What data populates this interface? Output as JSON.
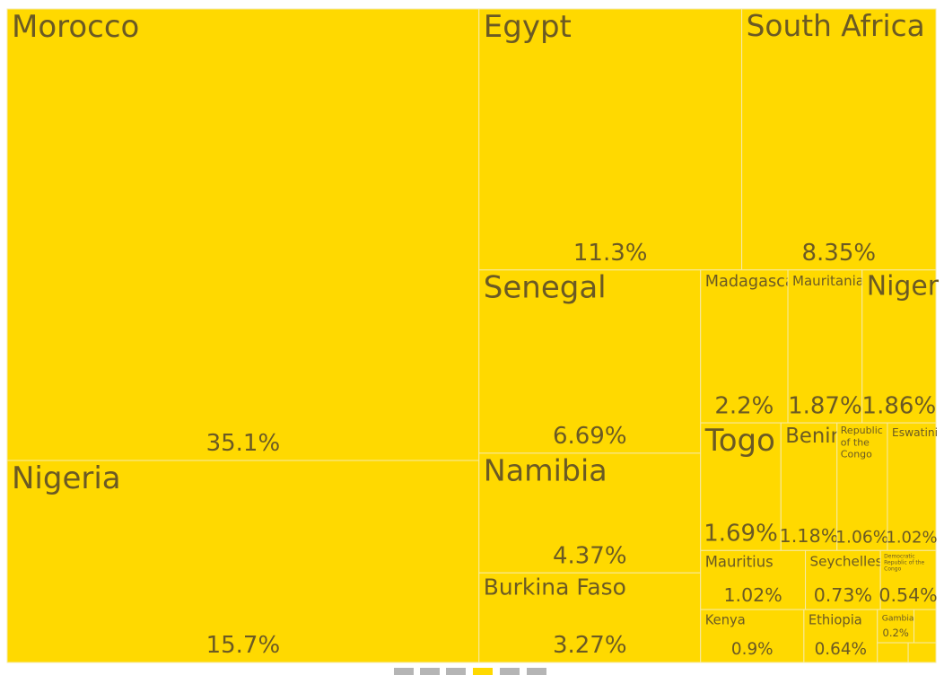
{
  "chart_data": {
    "type": "treemap",
    "categories": [
      "Morocco",
      "Nigeria",
      "Egypt",
      "South Africa",
      "Senegal",
      "Namibia",
      "Burkina Faso",
      "Madagascar",
      "Mauritania",
      "Niger",
      "Togo",
      "Benin",
      "Republic of the Congo",
      "Eswatini",
      "Mauritius",
      "Seychelles",
      "Democratic Republic of the Congo",
      "Kenya",
      "Ethiopia",
      "Gambia",
      null,
      null,
      null
    ],
    "values": [
      35.1,
      15.7,
      11.3,
      8.35,
      6.69,
      4.37,
      3.27,
      2.2,
      1.87,
      1.86,
      1.69,
      1.18,
      1.06,
      1.02,
      1.02,
      0.73,
      0.54,
      0.9,
      0.64,
      0.2,
      0.12,
      0.1,
      0.09
    ],
    "value_labels": [
      "35.1%",
      "15.7%",
      "11.3%",
      "8.35%",
      "6.69%",
      "4.37%",
      "3.27%",
      "2.2%",
      "1.87%",
      "1.86%",
      "1.69%",
      "1.18%",
      "1.06%",
      "1.02%",
      "1.02%",
      "0.73%",
      "0.54%",
      "0.9%",
      "0.64%",
      "0.2%",
      null,
      null,
      null
    ],
    "color": "#ffd900"
  }
}
